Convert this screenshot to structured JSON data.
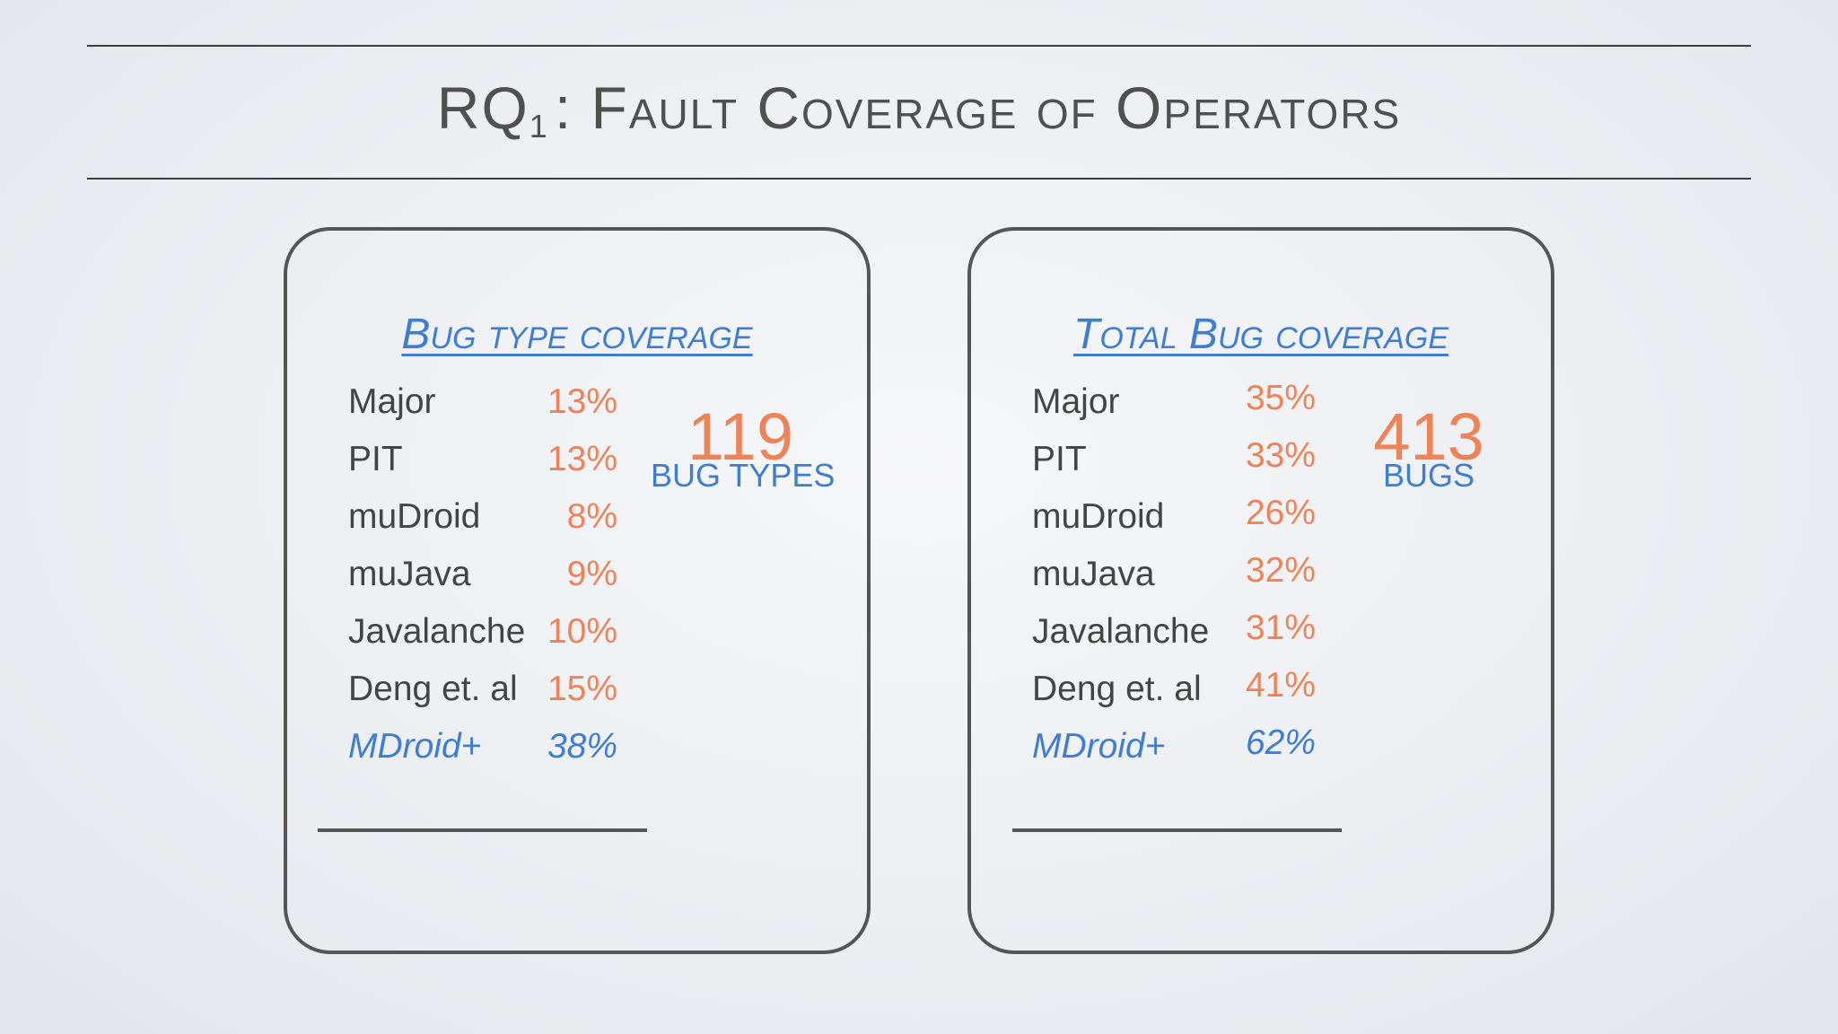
{
  "slide": {
    "title_prefix": "RQ",
    "title_subscript": "1",
    "title_suffix": ": Fault Coverage of Operators"
  },
  "left_panel": {
    "title": "Bug type coverage",
    "big_number": "119",
    "big_label": "BUG TYPES",
    "rows": [
      {
        "name": "Major",
        "value": "13%"
      },
      {
        "name": "PIT",
        "value": "13%"
      },
      {
        "name": "muDroid",
        "value": "8%"
      },
      {
        "name": "muJava",
        "value": "9%"
      },
      {
        "name": "Javalanche",
        "value": "10%"
      },
      {
        "name": "Deng et. al",
        "value": "15%"
      },
      {
        "name": "MDroid+",
        "value": "38%"
      }
    ]
  },
  "right_panel": {
    "title": "Total Bug coverage",
    "big_number": "413",
    "big_label": "BUGS",
    "rows": [
      {
        "name": "Major",
        "value": "35%"
      },
      {
        "name": "PIT",
        "value": "33%"
      },
      {
        "name": "muDroid",
        "value": "26%"
      },
      {
        "name": "muJava",
        "value": "32%"
      },
      {
        "name": "Javalanche",
        "value": "31%"
      },
      {
        "name": "Deng et. al",
        "value": "41%"
      },
      {
        "name": "MDroid+",
        "value": "62%"
      }
    ]
  },
  "colors": {
    "accent_blue": "#3f7dd1",
    "accent_orange": "#ef8358",
    "text_gray": "#444444"
  }
}
